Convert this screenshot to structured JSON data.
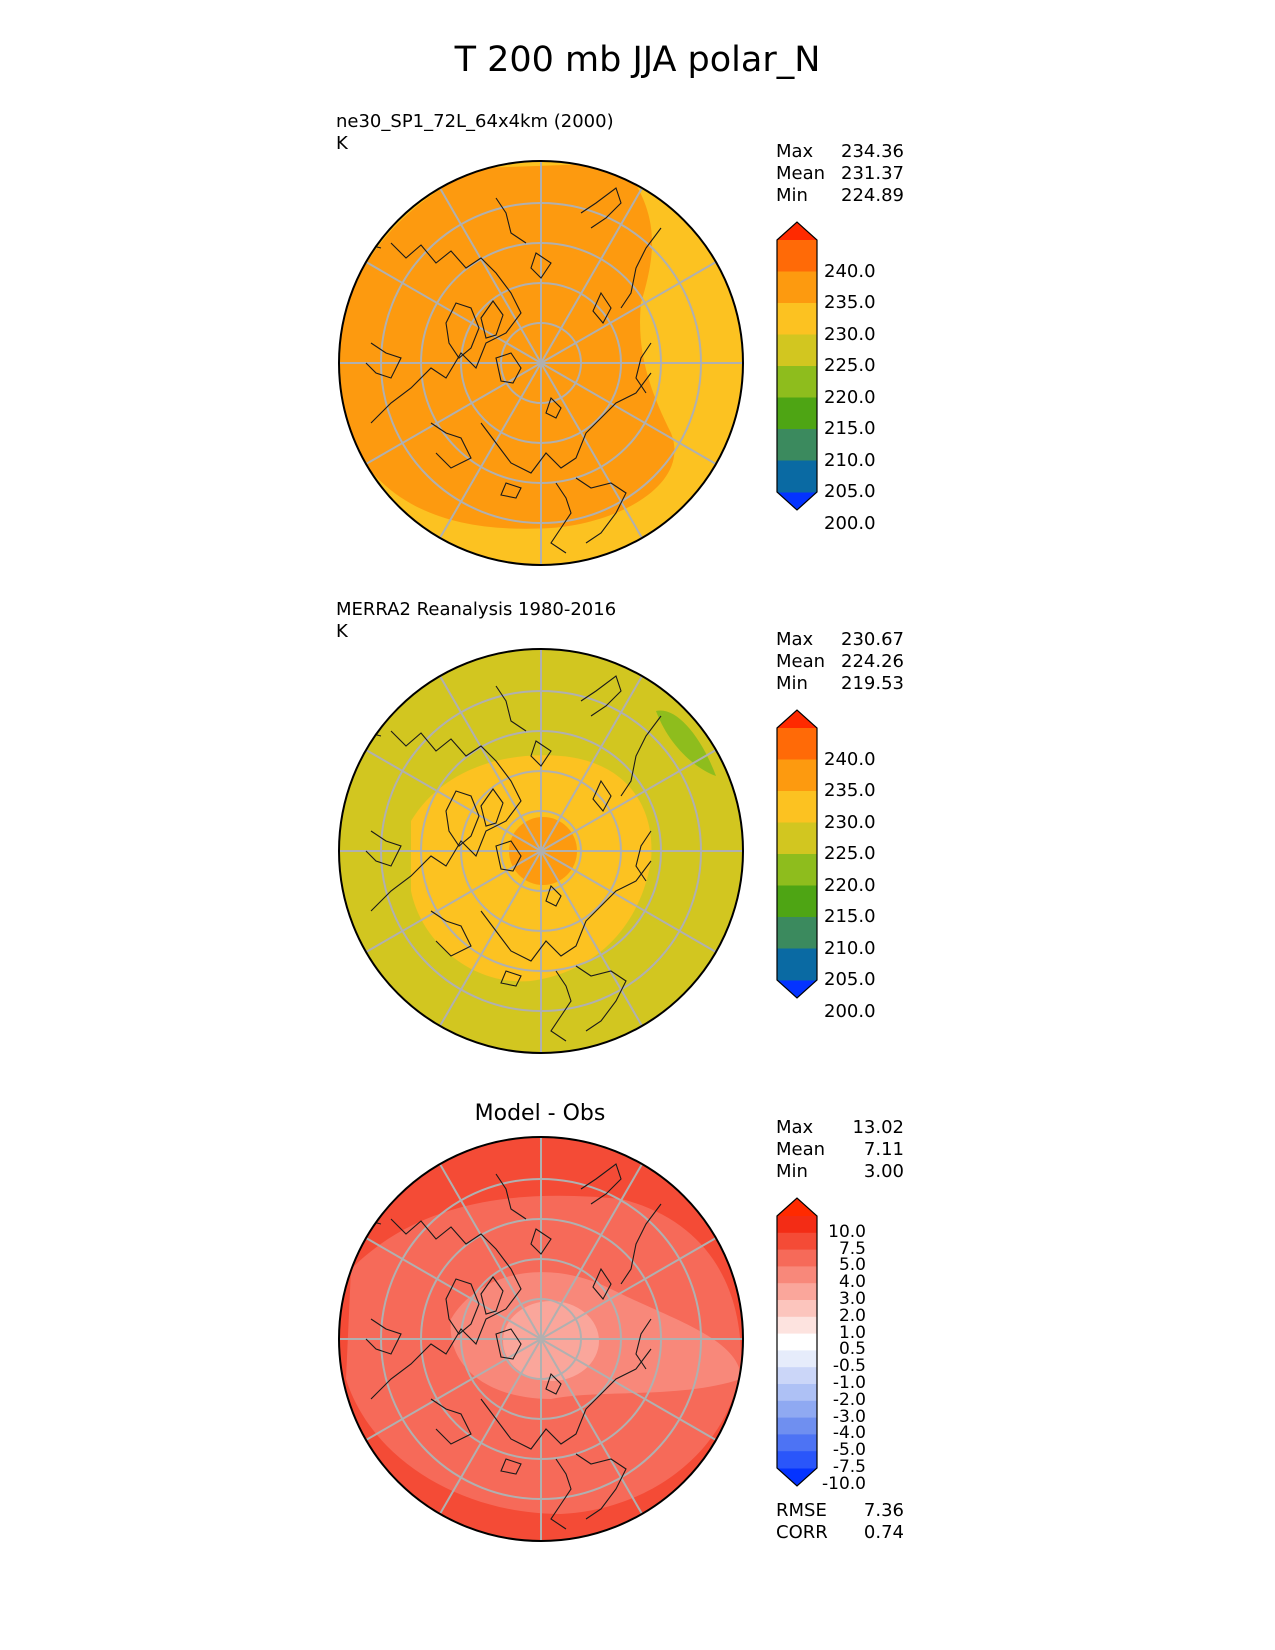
{
  "figure_title": "T 200 mb JJA polar_N",
  "chart_data": [
    {
      "type": "heatmap",
      "projection": "north polar stereographic",
      "title": "ne30_SP1_72L_64x4km (2000)",
      "units": "K",
      "stats": [
        {
          "label": "Max",
          "value": "234.36"
        },
        {
          "label": "Mean",
          "value": "231.37"
        },
        {
          "label": "Min",
          "value": "224.89"
        }
      ],
      "colorbar": {
        "levels": [
          200,
          205,
          210,
          215,
          220,
          225,
          230,
          235,
          240
        ],
        "tick_labels": [
          "240.0",
          "235.0",
          "230.0",
          "225.0",
          "220.0",
          "215.0",
          "210.0",
          "205.0",
          "200.0"
        ],
        "colors": [
          "#0433ff",
          "#0a6aa3",
          "#3b8a5e",
          "#4ea514",
          "#8ebd1d",
          "#d2c620",
          "#fcc221",
          "#fd9a0f",
          "#ff6a07",
          "#ff2a00"
        ]
      },
      "dominant_fill": "#fd9a0f",
      "outer_fill": "#fcc221"
    },
    {
      "type": "heatmap",
      "projection": "north polar stereographic",
      "title": "MERRA2 Reanalysis 1980-2016",
      "units": "K",
      "stats": [
        {
          "label": "Max",
          "value": "230.67"
        },
        {
          "label": "Mean",
          "value": "224.26"
        },
        {
          "label": "Min",
          "value": "219.53"
        }
      ],
      "colorbar": {
        "levels": [
          200,
          205,
          210,
          215,
          220,
          225,
          230,
          235,
          240
        ],
        "tick_labels": [
          "240.0",
          "235.0",
          "230.0",
          "225.0",
          "220.0",
          "215.0",
          "210.0",
          "205.0",
          "200.0"
        ],
        "colors": [
          "#0433ff",
          "#0a6aa3",
          "#3b8a5e",
          "#4ea514",
          "#8ebd1d",
          "#d2c620",
          "#fcc221",
          "#fd9a0f",
          "#ff6a07",
          "#ff2a00"
        ]
      },
      "dominant_fill": "#d2c620",
      "inner_fill": "#fcc221",
      "pole_fill": "#fd9a0f",
      "patch_fill": "#8ebd1d"
    },
    {
      "type": "heatmap",
      "projection": "north polar stereographic",
      "title": "Model - Obs",
      "units": "",
      "stats": [
        {
          "label": "Max",
          "value": "13.02"
        },
        {
          "label": "Mean",
          "value": "7.11"
        },
        {
          "label": "Min",
          "value": "3.00"
        }
      ],
      "colorbar": {
        "levels": [
          -10.0,
          -7.5,
          -5.0,
          -4.0,
          -3.0,
          -2.0,
          -1.0,
          -0.5,
          0.5,
          1.0,
          2.0,
          3.0,
          4.0,
          5.0,
          7.5,
          10.0
        ],
        "tick_labels": [
          "10.0",
          "7.5",
          "5.0",
          "4.0",
          "3.0",
          "2.0",
          "1.0",
          "0.5",
          "-0.5",
          "-1.0",
          "-2.0",
          "-3.0",
          "-4.0",
          "-5.0",
          "-7.5",
          "-10.0"
        ],
        "colors": [
          "#0433ff",
          "#2a56fa",
          "#4d73f4",
          "#6f8ff0",
          "#8fa9f2",
          "#aec1f5",
          "#cbd6f8",
          "#e6ecfb",
          "#ffffff",
          "#fde3df",
          "#fcc5bd",
          "#faa69b",
          "#f8887a",
          "#f66a59",
          "#f44b36",
          "#f32c15",
          "#ff2a00"
        ]
      },
      "dominant_fill": "#f66a59",
      "inner_fill": "#f8887a",
      "pole_fill": "#faa69b",
      "edge_fill": "#f44b36",
      "bottom_stats": [
        {
          "label": "RMSE",
          "value": "7.36"
        },
        {
          "label": "CORR",
          "value": "0.74"
        }
      ]
    }
  ]
}
